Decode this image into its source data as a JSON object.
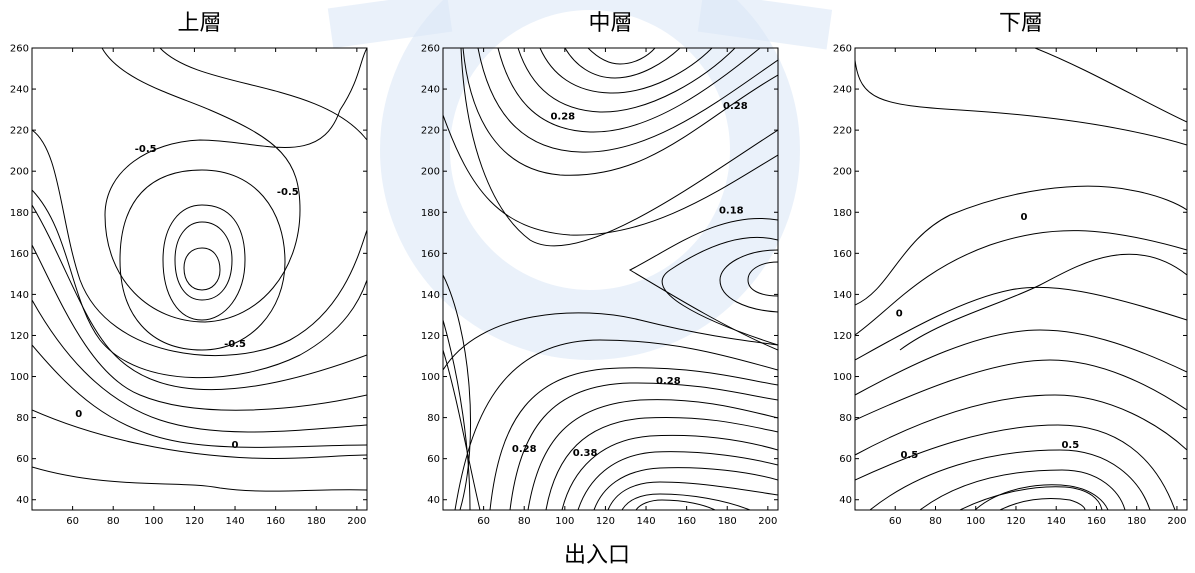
{
  "chart_data": [
    {
      "type": "contour",
      "title": "上層",
      "xlim": [
        40,
        205
      ],
      "ylim": [
        35,
        260
      ],
      "xticks": [
        60,
        80,
        100,
        120,
        140,
        160,
        180,
        200
      ],
      "yticks": [
        40,
        60,
        80,
        100,
        120,
        140,
        160,
        180,
        200,
        220,
        240,
        260
      ],
      "contour_labels": [
        {
          "text": "-0.5",
          "x": 96,
          "y": 211
        },
        {
          "text": "-0.5",
          "x": 166,
          "y": 190
        },
        {
          "text": "-0.5",
          "x": 140,
          "y": 116
        },
        {
          "text": "0",
          "x": 63,
          "y": 82
        },
        {
          "text": "0",
          "x": 140,
          "y": 67
        }
      ]
    },
    {
      "type": "contour",
      "title": "中層",
      "xlim": [
        40,
        205
      ],
      "ylim": [
        35,
        260
      ],
      "xticks": [
        60,
        80,
        100,
        120,
        140,
        160,
        180,
        200
      ],
      "yticks": [
        40,
        60,
        80,
        100,
        120,
        140,
        160,
        180,
        200,
        220,
        240,
        260
      ],
      "contour_labels": [
        {
          "text": "0.28",
          "x": 99,
          "y": 227
        },
        {
          "text": "0.28",
          "x": 184,
          "y": 232
        },
        {
          "text": "0.18",
          "x": 182,
          "y": 181
        },
        {
          "text": "0.28",
          "x": 151,
          "y": 98
        },
        {
          "text": "0.28",
          "x": 80,
          "y": 65
        },
        {
          "text": "0.38",
          "x": 110,
          "y": 63
        }
      ]
    },
    {
      "type": "contour",
      "title": "下層",
      "xlim": [
        40,
        205
      ],
      "ylim": [
        35,
        260
      ],
      "xticks": [
        60,
        80,
        100,
        120,
        140,
        160,
        180,
        200
      ],
      "yticks": [
        40,
        60,
        80,
        100,
        120,
        140,
        160,
        180,
        200,
        220,
        240,
        260
      ],
      "contour_labels": [
        {
          "text": "0",
          "x": 124,
          "y": 178
        },
        {
          "text": "0",
          "x": 62,
          "y": 131
        },
        {
          "text": "0.5",
          "x": 67,
          "y": 62
        },
        {
          "text": "0.5",
          "x": 147,
          "y": 67
        }
      ]
    }
  ],
  "xlabel": "出入口"
}
